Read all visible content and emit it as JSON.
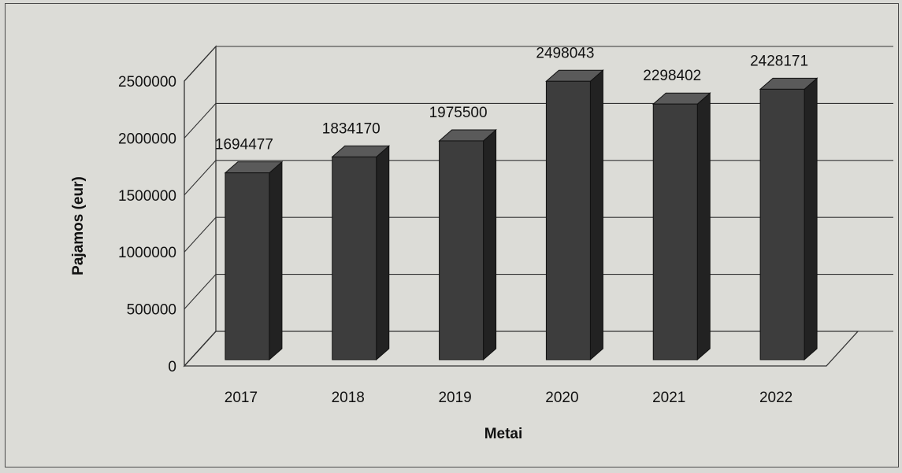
{
  "chart_data": {
    "type": "bar",
    "style": "3d-column",
    "categories": [
      "2017",
      "2018",
      "2019",
      "2020",
      "2021",
      "2022"
    ],
    "values": [
      1694477,
      1834170,
      1975500,
      2498043,
      2298402,
      2428171
    ],
    "data_labels": [
      "1694477",
      "1834170",
      "1975500",
      "2498043",
      "2298402",
      "2428171"
    ],
    "yticks": [
      "0",
      "500000",
      "1000000",
      "1500000",
      "2000000",
      "2500000"
    ],
    "xlabel": "Metai",
    "ylabel": "Pajamos (eur)",
    "ylim": [
      0,
      2500000
    ],
    "grid": true,
    "colors": {
      "bar": "#3d3d3d",
      "bar_side": "#222222",
      "bar_top": "#5a5a5a",
      "grid": "#333333",
      "background": "#dcdcd7"
    }
  }
}
